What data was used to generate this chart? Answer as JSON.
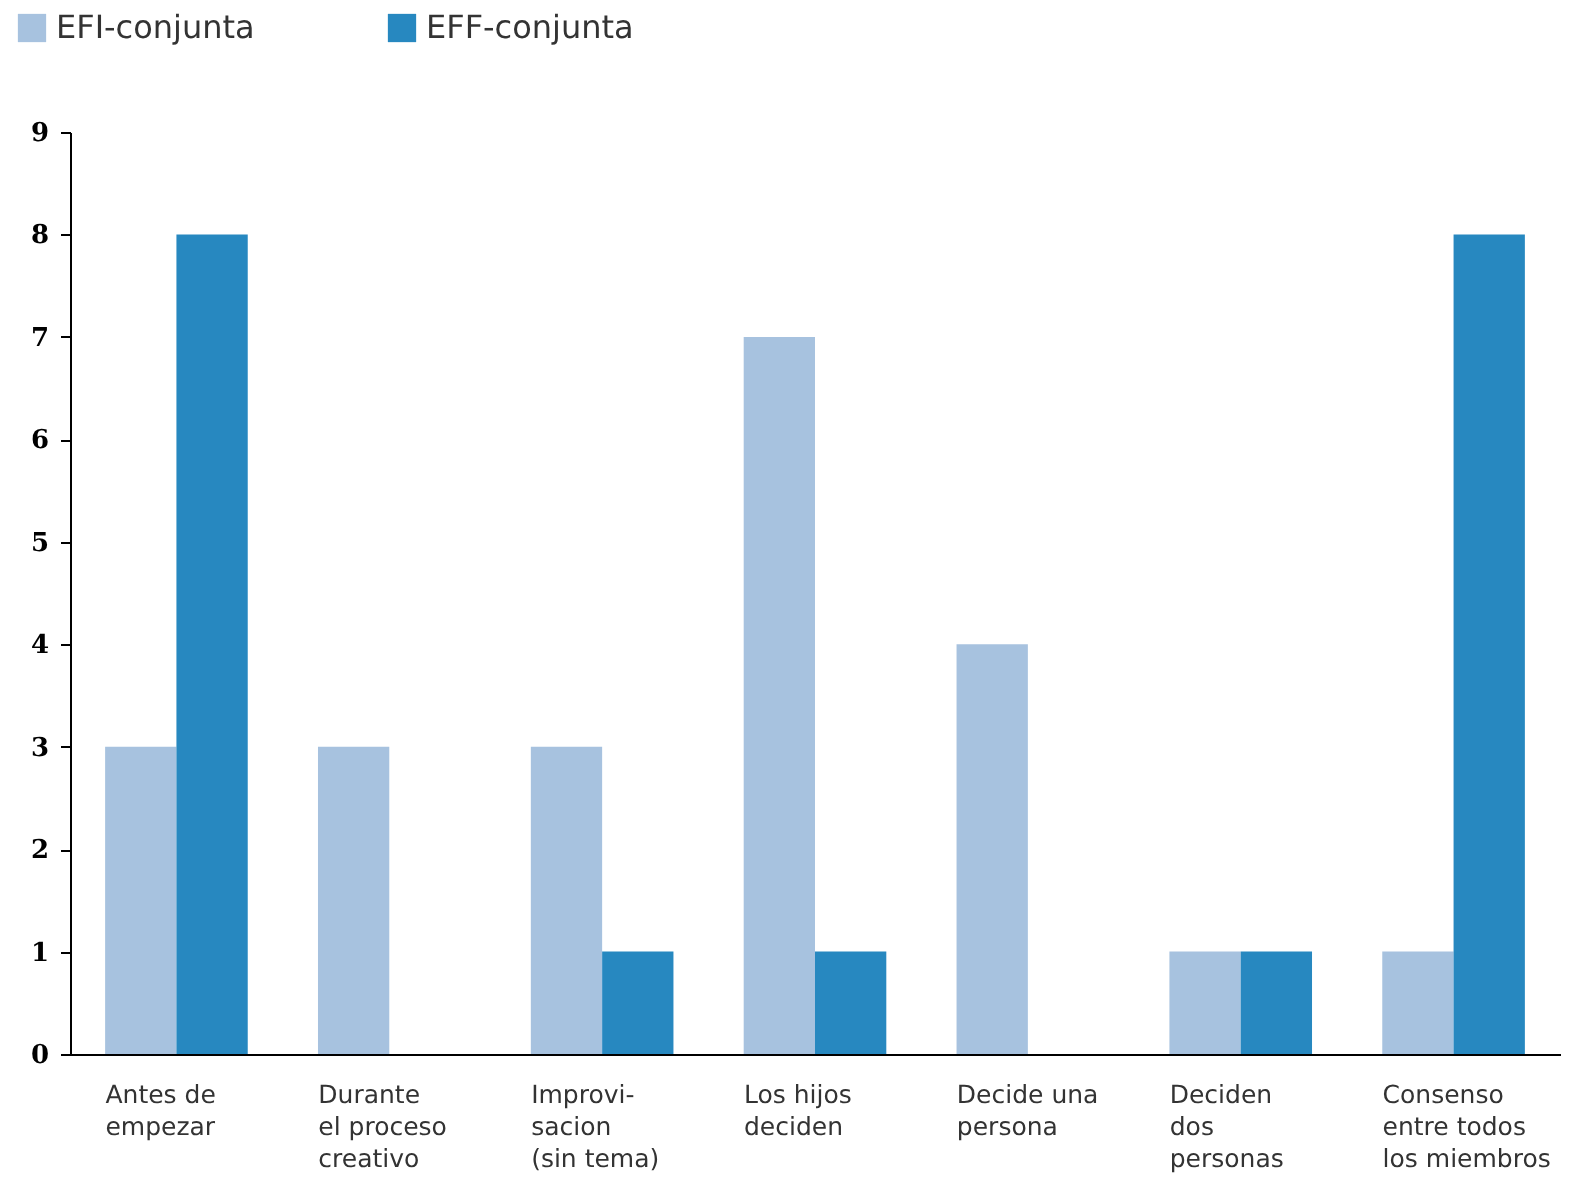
{
  "chart_data": {
    "type": "bar",
    "categories": [
      "Antes de\nempezar",
      "Durante\nel proceso\ncreativo",
      "Improvi-\nsacion\n(sin tema)",
      "Los hijos\ndeciden",
      "Decide una\npersona",
      "Deciden\ndos\npersonas",
      "Consenso\nentre todos\nlos miembros"
    ],
    "series": [
      {
        "name": "EFI-conjunta",
        "color": "#a7c2df",
        "values": [
          3,
          3,
          3,
          7,
          4,
          1,
          1
        ]
      },
      {
        "name": "EFF-conjunta",
        "color": "#2788c0",
        "values": [
          8,
          0,
          1,
          1,
          0,
          1,
          8
        ]
      }
    ],
    "ylim": [
      0,
      9
    ],
    "yticks": [
      0,
      1,
      2,
      3,
      4,
      5,
      6,
      7,
      8,
      9
    ],
    "grid": false,
    "legend": "top left"
  }
}
